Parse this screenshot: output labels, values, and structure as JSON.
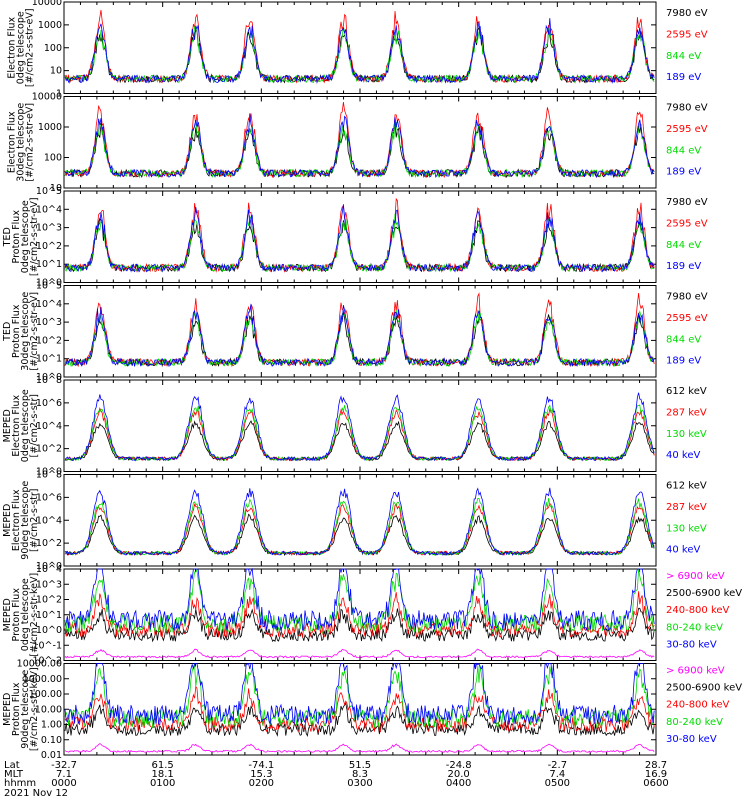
{
  "chart_data": {
    "type": "line",
    "date": "2021 Nov 12",
    "panels": [
      {
        "ylabel": [
          "Electron Flux",
          "0deg telescope",
          "[#/cm2-s-str-eV]"
        ],
        "yticks": [
          "1",
          "10",
          "100",
          "1000",
          "10000"
        ],
        "ylog": [
          0,
          4
        ],
        "legend": [
          {
            "label": "7980 eV",
            "color": "#000000"
          },
          {
            "label": "2595 eV",
            "color": "#ff0000"
          },
          {
            "label": "844 eV",
            "color": "#00dd00"
          },
          {
            "label": "189 eV",
            "color": "#0000ff"
          }
        ]
      },
      {
        "ylabel": [
          "Electron Flux",
          "30deg telescope",
          "[#/cm2-s-str-eV]"
        ],
        "yticks": [
          "10",
          "100",
          "1000",
          "10000"
        ],
        "ylog": [
          0.6,
          4
        ],
        "legend": [
          {
            "label": "7980 eV",
            "color": "#000000"
          },
          {
            "label": "2595 eV",
            "color": "#ff0000"
          },
          {
            "label": "844 eV",
            "color": "#00dd00"
          },
          {
            "label": "189 eV",
            "color": "#0000ff"
          }
        ]
      },
      {
        "ylabel": [
          "TED",
          "Proton Flux",
          "0deg telescope",
          "[#/cm2-s-str-eV]"
        ],
        "yticks": [
          "10^0",
          "10^1",
          "10^2",
          "10^3",
          "10^4",
          "10^5"
        ],
        "ylog": [
          0,
          5
        ],
        "legend": [
          {
            "label": "7980 eV",
            "color": "#000000"
          },
          {
            "label": "2595 eV",
            "color": "#ff0000"
          },
          {
            "label": "844 eV",
            "color": "#00dd00"
          },
          {
            "label": "189 eV",
            "color": "#0000ff"
          }
        ]
      },
      {
        "ylabel": [
          "TED",
          "Proton Flux",
          "30deg telescope",
          "[#/cm2-s-str-eV]"
        ],
        "yticks": [
          "10^0",
          "10^1",
          "10^2",
          "10^3",
          "10^4",
          "10^5"
        ],
        "ylog": [
          0,
          5
        ],
        "legend": [
          {
            "label": "7980 eV",
            "color": "#000000"
          },
          {
            "label": "2595 eV",
            "color": "#ff0000"
          },
          {
            "label": "844 eV",
            "color": "#00dd00"
          },
          {
            "label": "189 eV",
            "color": "#0000ff"
          }
        ]
      },
      {
        "ylabel": [
          "MEPED",
          "Electron Flux",
          "0deg telescope",
          "[#/cm2-s-str]"
        ],
        "yticks": [
          "10^0",
          "10^2",
          "10^4",
          "10^6",
          "10^8"
        ],
        "ylog": [
          0,
          8
        ],
        "legend": [
          {
            "label": "612 keV",
            "color": "#000000"
          },
          {
            "label": "287 keV",
            "color": "#ff0000"
          },
          {
            "label": "130 keV",
            "color": "#00dd00"
          },
          {
            "label": "40 keV",
            "color": "#0000ff"
          }
        ]
      },
      {
        "ylabel": [
          "MEPED",
          "Electron Flux",
          "90deg telescope",
          "[#/cm2-s-str]"
        ],
        "yticks": [
          "10^0",
          "10^2",
          "10^4",
          "10^6",
          "10^8"
        ],
        "ylog": [
          0,
          8
        ],
        "legend": [
          {
            "label": "612 keV",
            "color": "#000000"
          },
          {
            "label": "287 keV",
            "color": "#ff0000"
          },
          {
            "label": "130 keV",
            "color": "#00dd00"
          },
          {
            "label": "40 keV",
            "color": "#0000ff"
          }
        ]
      },
      {
        "ylabel": [
          "MEPED",
          "Proton Flux",
          "0deg telescope",
          "[#/cm2-s-str-keV]"
        ],
        "yticks": [
          "10^-2",
          "10^-1",
          "10^0",
          "10^1",
          "10^2",
          "10^3",
          "10^4"
        ],
        "ylog": [
          -2,
          4
        ],
        "legend": [
          {
            "label": "> 6900 keV",
            "color": "#ff00ff"
          },
          {
            "label": "2500-6900 keV",
            "color": "#000000"
          },
          {
            "label": "240-800 keV",
            "color": "#ff0000"
          },
          {
            "label": "80-240 keV",
            "color": "#00dd00"
          },
          {
            "label": "30-80 keV",
            "color": "#0000ff"
          }
        ]
      },
      {
        "ylabel": [
          "MEPED",
          "Proton Flux",
          "90deg telescope",
          "[#/cm2-s-str-keV]"
        ],
        "yticks": [
          "0.01",
          "0.10",
          "1.00",
          "10.00",
          "100.00",
          "1000.00",
          "10000.00"
        ],
        "ylog": [
          -2,
          4
        ],
        "legend": [
          {
            "label": "> 6900 keV",
            "color": "#ff00ff"
          },
          {
            "label": "2500-6900 keV",
            "color": "#000000"
          },
          {
            "label": "240-800 keV",
            "color": "#ff0000"
          },
          {
            "label": "80-240 keV",
            "color": "#00dd00"
          },
          {
            "label": "30-80 keV",
            "color": "#0000ff"
          }
        ]
      }
    ],
    "x_axis": {
      "row_labels": [
        "Lat",
        "MLT",
        "hhmm"
      ],
      "ticks": [
        {
          "lat": "-32.7",
          "mlt": "7.1",
          "hhmm": "0000"
        },
        {
          "lat": "61.5",
          "mlt": "18.1",
          "hhmm": "0100"
        },
        {
          "lat": "-74.1",
          "mlt": "15.3",
          "hhmm": "0200"
        },
        {
          "lat": "51.5",
          "mlt": "8.3",
          "hhmm": "0300"
        },
        {
          "lat": "-24.8",
          "mlt": "20.0",
          "hhmm": "0400"
        },
        {
          "lat": "-2.7",
          "mlt": "7.4",
          "hhmm": "0500"
        },
        {
          "lat": "28.7",
          "mlt": "16.9",
          "hhmm": "0600"
        }
      ]
    },
    "series_peaks_hhmm": [
      "0022",
      "0120",
      "0153",
      "0250",
      "0322",
      "0412",
      "0455",
      "0550"
    ]
  }
}
